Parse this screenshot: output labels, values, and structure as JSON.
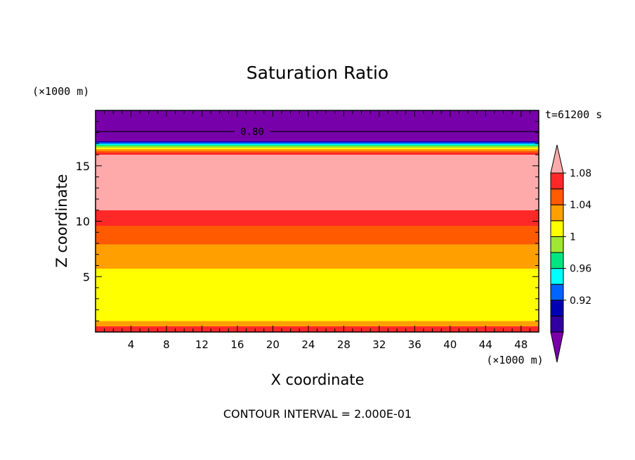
{
  "chart_data": {
    "type": "heatmap",
    "title": "Saturation Ratio",
    "xlabel": "X coordinate",
    "ylabel": "Z coordinate",
    "x_unit": "(×1000 m)",
    "y_unit": "(×1000 m)",
    "time_label": "t=61200 s",
    "footer": "CONTOUR INTERVAL = 2.000E-01",
    "xlim": [
      0,
      50
    ],
    "ylim": [
      0,
      20
    ],
    "x_ticks": [
      4,
      8,
      12,
      16,
      20,
      24,
      28,
      32,
      36,
      40,
      44,
      48
    ],
    "y_ticks": [
      5,
      10,
      15
    ],
    "layers": [
      {
        "z0": 0.0,
        "z1": 0.5,
        "color": "#ff2828"
      },
      {
        "z0": 0.5,
        "z1": 1.0,
        "color": "#ffa000"
      },
      {
        "z0": 1.0,
        "z1": 5.7,
        "color": "#ffff00"
      },
      {
        "z0": 5.7,
        "z1": 7.9,
        "color": "#ffa000"
      },
      {
        "z0": 7.9,
        "z1": 9.6,
        "color": "#ff5a00"
      },
      {
        "z0": 9.6,
        "z1": 11.0,
        "color": "#ff2828"
      },
      {
        "z0": 11.0,
        "z1": 16.0,
        "color": "#ffaaaa"
      },
      {
        "z0": 16.0,
        "z1": 16.2,
        "color": "#ff2828"
      },
      {
        "z0": 16.2,
        "z1": 16.35,
        "color": "#ff5a00"
      },
      {
        "z0": 16.35,
        "z1": 16.5,
        "color": "#ffa000"
      },
      {
        "z0": 16.5,
        "z1": 16.65,
        "color": "#ffff00"
      },
      {
        "z0": 16.65,
        "z1": 16.8,
        "color": "#a0e632"
      },
      {
        "z0": 16.8,
        "z1": 16.9,
        "color": "#00e682"
      },
      {
        "z0": 16.9,
        "z1": 17.0,
        "color": "#00ffff"
      },
      {
        "z0": 17.0,
        "z1": 17.1,
        "color": "#0064ff"
      },
      {
        "z0": 17.1,
        "z1": 17.2,
        "color": "#0000b4"
      },
      {
        "z0": 17.2,
        "z1": 20.0,
        "color": "#7800aa"
      }
    ],
    "contour_line": {
      "z": 18.1,
      "label": "0.80"
    },
    "colorbar": {
      "colors": [
        "#7800aa",
        "#3200a0",
        "#0000b4",
        "#0064ff",
        "#00ffff",
        "#00e682",
        "#a0e632",
        "#ffff00",
        "#ffa000",
        "#ff5a00",
        "#ff2828",
        "#ffaaaa"
      ],
      "labels": [
        {
          "boundary": 2,
          "text": "0.92"
        },
        {
          "boundary": 4,
          "text": "0.96"
        },
        {
          "boundary": 6,
          "text": "1"
        },
        {
          "boundary": 8,
          "text": "1.04"
        },
        {
          "boundary": 10,
          "text": "1.08"
        }
      ]
    }
  }
}
